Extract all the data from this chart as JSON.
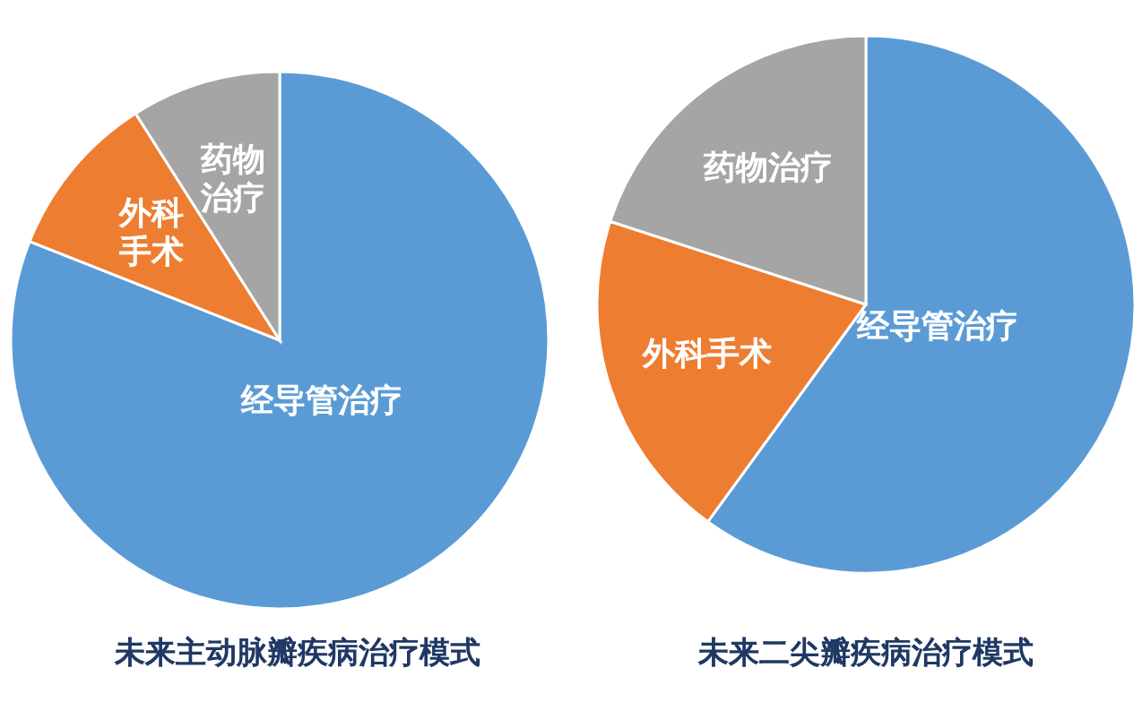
{
  "chart_data": [
    {
      "type": "pie",
      "title": "未来主动脉瓣疾病治疗模式",
      "categories": [
        "经导管治疗",
        "外科手术",
        "药物治疗"
      ],
      "values": [
        81,
        10,
        9
      ],
      "colors": [
        "#5b9bd5",
        "#ed7d31",
        "#a5a5a5"
      ]
    },
    {
      "type": "pie",
      "title": "未来二尖瓣疾病治疗模式",
      "categories": [
        "经导管治疗",
        "外科手术",
        "药物治疗"
      ],
      "values": [
        60,
        20,
        20
      ],
      "colors": [
        "#5b9bd5",
        "#ed7d31",
        "#a5a5a5"
      ]
    }
  ]
}
